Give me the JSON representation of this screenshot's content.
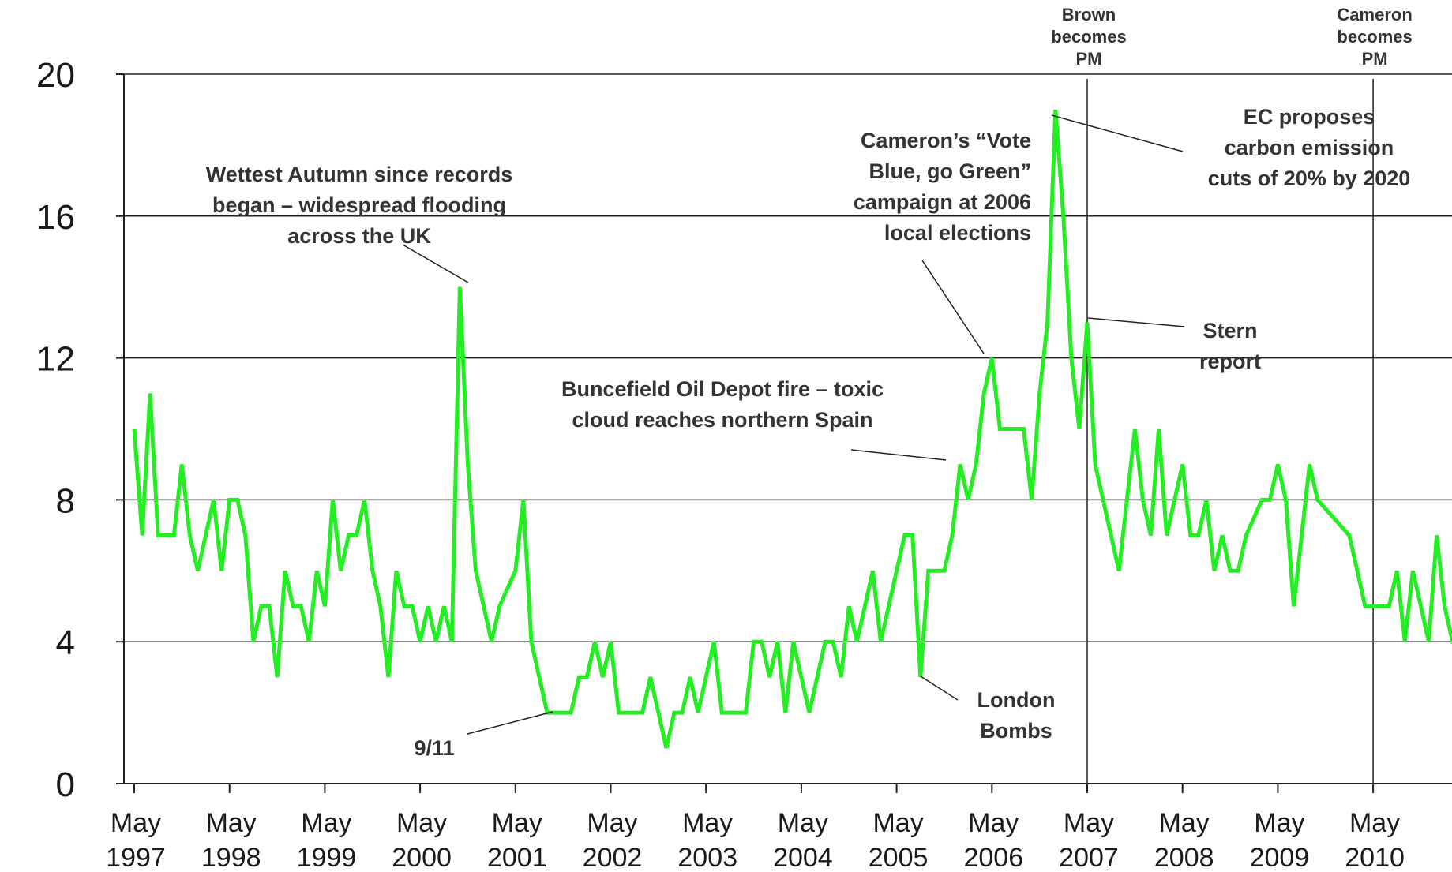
{
  "chart_data": {
    "type": "line",
    "title": "",
    "xlabel": "",
    "ylabel": "",
    "ylim": [
      0,
      20
    ],
    "y_ticks": [
      "0",
      "4",
      "8",
      "12",
      "16",
      "20"
    ],
    "grid": "horizontal",
    "x_ticks": [
      {
        "month": "May",
        "year": "1997"
      },
      {
        "month": "May",
        "year": "1998"
      },
      {
        "month": "May",
        "year": "1999"
      },
      {
        "month": "May",
        "year": "2000"
      },
      {
        "month": "May",
        "year": "2001"
      },
      {
        "month": "May",
        "year": "2002"
      },
      {
        "month": "May",
        "year": "2003"
      },
      {
        "month": "May",
        "year": "2004"
      },
      {
        "month": "May",
        "year": "2005"
      },
      {
        "month": "May",
        "year": "2006"
      },
      {
        "month": "May",
        "year": "2007"
      },
      {
        "month": "May",
        "year": "2008"
      },
      {
        "month": "May",
        "year": "2009"
      },
      {
        "month": "May",
        "year": "2010"
      }
    ],
    "series": [
      {
        "color": "#22ee22",
        "points": [
          [
            "1997-05",
            10
          ],
          [
            "1997-06",
            7
          ],
          [
            "1997-07",
            11
          ],
          [
            "1997-08",
            7
          ],
          [
            "1997-09",
            7
          ],
          [
            "1997-10",
            7
          ],
          [
            "1997-11",
            9
          ],
          [
            "1997-12",
            7
          ],
          [
            "1998-01",
            6
          ],
          [
            "1998-02",
            7
          ],
          [
            "1998-03",
            8
          ],
          [
            "1998-04",
            6
          ],
          [
            "1998-05",
            8
          ],
          [
            "1998-06",
            8
          ],
          [
            "1998-07",
            7
          ],
          [
            "1998-08",
            4
          ],
          [
            "1998-09",
            5
          ],
          [
            "1998-10",
            5
          ],
          [
            "1998-11",
            3
          ],
          [
            "1998-12",
            6
          ],
          [
            "1999-01",
            5
          ],
          [
            "1999-02",
            5
          ],
          [
            "1999-03",
            4
          ],
          [
            "1999-04",
            6
          ],
          [
            "1999-05",
            5
          ],
          [
            "1999-06",
            8
          ],
          [
            "1999-07",
            6
          ],
          [
            "1999-08",
            7
          ],
          [
            "1999-09",
            7
          ],
          [
            "1999-10",
            8
          ],
          [
            "1999-11",
            6
          ],
          [
            "1999-12",
            5
          ],
          [
            "2000-01",
            3
          ],
          [
            "2000-02",
            6
          ],
          [
            "2000-03",
            5
          ],
          [
            "2000-04",
            5
          ],
          [
            "2000-05",
            4
          ],
          [
            "2000-06",
            5
          ],
          [
            "2000-07",
            4
          ],
          [
            "2000-08",
            5
          ],
          [
            "2000-09",
            4
          ],
          [
            "2000-10",
            14
          ],
          [
            "2000-11",
            9
          ],
          [
            "2000-12",
            6
          ],
          [
            "2001-01",
            5
          ],
          [
            "2001-02",
            4
          ],
          [
            "2001-03",
            5
          ],
          [
            "2001-04",
            5.5
          ],
          [
            "2001-05",
            6
          ],
          [
            "2001-06",
            8
          ],
          [
            "2001-07",
            4
          ],
          [
            "2001-08",
            3
          ],
          [
            "2001-09",
            2
          ],
          [
            "2001-10",
            2
          ],
          [
            "2001-11",
            2
          ],
          [
            "2001-12",
            2
          ],
          [
            "2002-01",
            3
          ],
          [
            "2002-02",
            3
          ],
          [
            "2002-03",
            4
          ],
          [
            "2002-04",
            3
          ],
          [
            "2002-05",
            4
          ],
          [
            "2002-06",
            2
          ],
          [
            "2002-07",
            2
          ],
          [
            "2002-08",
            2
          ],
          [
            "2002-09",
            2
          ],
          [
            "2002-10",
            3
          ],
          [
            "2002-11",
            2
          ],
          [
            "2002-12",
            1
          ],
          [
            "2003-01",
            2
          ],
          [
            "2003-02",
            2
          ],
          [
            "2003-03",
            3
          ],
          [
            "2003-04",
            2
          ],
          [
            "2003-05",
            3
          ],
          [
            "2003-06",
            4
          ],
          [
            "2003-07",
            2
          ],
          [
            "2003-08",
            2
          ],
          [
            "2003-09",
            2
          ],
          [
            "2003-10",
            2
          ],
          [
            "2003-11",
            4
          ],
          [
            "2003-12",
            4
          ],
          [
            "2004-01",
            3
          ],
          [
            "2004-02",
            4
          ],
          [
            "2004-03",
            2
          ],
          [
            "2004-04",
            4
          ],
          [
            "2004-05",
            3
          ],
          [
            "2004-06",
            2
          ],
          [
            "2004-07",
            3
          ],
          [
            "2004-08",
            4
          ],
          [
            "2004-09",
            4
          ],
          [
            "2004-10",
            3
          ],
          [
            "2004-11",
            5
          ],
          [
            "2004-12",
            4
          ],
          [
            "2005-01",
            5
          ],
          [
            "2005-02",
            6
          ],
          [
            "2005-03",
            4
          ],
          [
            "2005-04",
            5
          ],
          [
            "2005-05",
            6
          ],
          [
            "2005-06",
            7
          ],
          [
            "2005-07",
            7
          ],
          [
            "2005-08",
            3
          ],
          [
            "2005-09",
            6
          ],
          [
            "2005-10",
            6
          ],
          [
            "2005-11",
            6
          ],
          [
            "2005-12",
            7
          ],
          [
            "2006-01",
            9
          ],
          [
            "2006-02",
            8
          ],
          [
            "2006-03",
            9
          ],
          [
            "2006-04",
            11
          ],
          [
            "2006-05",
            12
          ],
          [
            "2006-06",
            10
          ],
          [
            "2006-07",
            10
          ],
          [
            "2006-08",
            10
          ],
          [
            "2006-09",
            10
          ],
          [
            "2006-10",
            8
          ],
          [
            "2006-11",
            11
          ],
          [
            "2006-12",
            13
          ],
          [
            "2007-01",
            19
          ],
          [
            "2007-02",
            16
          ],
          [
            "2007-03",
            12
          ],
          [
            "2007-04",
            10
          ],
          [
            "2007-05",
            13
          ],
          [
            "2007-06",
            9
          ],
          [
            "2007-07",
            8
          ],
          [
            "2007-08",
            7
          ],
          [
            "2007-09",
            6
          ],
          [
            "2007-10",
            8
          ],
          [
            "2007-11",
            10
          ],
          [
            "2007-12",
            8
          ],
          [
            "2008-01",
            7
          ],
          [
            "2008-02",
            10
          ],
          [
            "2008-03",
            7
          ],
          [
            "2008-04",
            8
          ],
          [
            "2008-05",
            9
          ],
          [
            "2008-06",
            7
          ],
          [
            "2008-07",
            7
          ],
          [
            "2008-08",
            8
          ],
          [
            "2008-09",
            6
          ],
          [
            "2008-10",
            7
          ],
          [
            "2008-11",
            6
          ],
          [
            "2008-12",
            6
          ],
          [
            "2009-01",
            7
          ],
          [
            "2009-03",
            8
          ],
          [
            "2009-04",
            8
          ],
          [
            "2009-05",
            9
          ],
          [
            "2009-06",
            8
          ],
          [
            "2009-07",
            5
          ],
          [
            "2009-08",
            7
          ],
          [
            "2009-09",
            9
          ],
          [
            "2009-10",
            8
          ],
          [
            "2009-12",
            7.5
          ],
          [
            "2010-02",
            7
          ],
          [
            "2010-03",
            6
          ],
          [
            "2010-04",
            5
          ],
          [
            "2010-05",
            5
          ],
          [
            "2010-06",
            5
          ],
          [
            "2010-07",
            5
          ],
          [
            "2010-08",
            6
          ],
          [
            "2010-09",
            4
          ],
          [
            "2010-10",
            6
          ],
          [
            "2010-11",
            5
          ],
          [
            "2010-12",
            4
          ],
          [
            "2011-01",
            7
          ],
          [
            "2011-02",
            5
          ],
          [
            "2011-03",
            4
          ],
          [
            "2011-04",
            4
          ]
        ]
      }
    ],
    "event_lines": [
      {
        "date": "2007-05",
        "label": [
          "Brown",
          "becomes",
          "PM"
        ]
      },
      {
        "date": "2010-05",
        "label": [
          "Cameron",
          "becomes",
          "PM"
        ]
      }
    ],
    "annotations": [
      {
        "point": [
          "2000-10",
          14
        ],
        "lines": [
          "Wettest Autumn since records",
          "began – widespread flooding",
          "across the UK"
        ]
      },
      {
        "point": [
          "2001-09",
          2
        ],
        "lines": [
          "9/11"
        ]
      },
      {
        "point": [
          "2006-05",
          12
        ],
        "lines": [
          "Cameron’s “Vote",
          "Blue, go Green”",
          "campaign at 2006",
          "local elections"
        ]
      },
      {
        "point": [
          "2006-01",
          9
        ],
        "lines": [
          "Buncefield Oil Depot fire – toxic",
          "cloud reaches northern Spain"
        ]
      },
      {
        "point": [
          "2005-08",
          3
        ],
        "lines": [
          "London",
          "Bombs"
        ]
      },
      {
        "point": [
          "2007-01",
          19
        ],
        "lines": [
          "EC proposes",
          "carbon emission",
          "cuts of 20% by 2020"
        ]
      },
      {
        "point": [
          "2007-05",
          13
        ],
        "lines": [
          "Stern",
          "report"
        ]
      }
    ]
  }
}
